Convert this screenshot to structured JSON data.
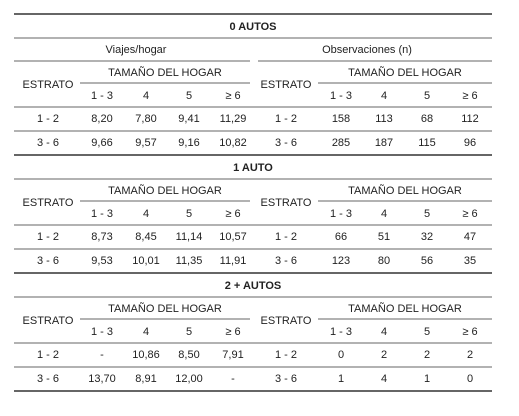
{
  "sections": [
    {
      "title": "0 AUTOS",
      "subheaders": [
        "Viajes/hogar",
        "Observaciones (n)"
      ],
      "halves": [
        {
          "stub_header": "ESTRATO",
          "group_header": "TAMAÑO DEL HOGAR",
          "columns": [
            "1 - 3",
            "4",
            "5",
            "≥ 6"
          ],
          "rows": [
            [
              "1 - 2",
              "8,20",
              "7,80",
              "9,41",
              "11,29"
            ],
            [
              "3 - 6",
              "9,66",
              "9,57",
              "9,16",
              "10,82"
            ]
          ]
        },
        {
          "stub_header": "ESTRATO",
          "group_header": "TAMAÑO DEL HOGAR",
          "columns": [
            "1 - 3",
            "4",
            "5",
            "≥ 6"
          ],
          "rows": [
            [
              "1 - 2",
              "158",
              "113",
              "68",
              "112"
            ],
            [
              "3 - 6",
              "285",
              "187",
              "115",
              "96"
            ]
          ]
        }
      ]
    },
    {
      "title": "1 AUTO",
      "halves": [
        {
          "stub_header": "ESTRATO",
          "group_header": "TAMAÑO DEL HOGAR",
          "columns": [
            "1 - 3",
            "4",
            "5",
            "≥ 6"
          ],
          "rows": [
            [
              "1 - 2",
              "8,73",
              "8,45",
              "11,14",
              "10,57"
            ],
            [
              "3 - 6",
              "9,53",
              "10,01",
              "11,35",
              "11,91"
            ]
          ]
        },
        {
          "stub_header": "ESTRATO",
          "group_header": "TAMAÑO DEL HOGAR",
          "columns": [
            "1 - 3",
            "4",
            "5",
            "≥ 6"
          ],
          "rows": [
            [
              "1 - 2",
              "66",
              "51",
              "32",
              "47"
            ],
            [
              "3 - 6",
              "123",
              "80",
              "56",
              "35"
            ]
          ]
        }
      ]
    },
    {
      "title": "2 + AUTOS",
      "halves": [
        {
          "stub_header": "ESTRATO",
          "group_header": "TAMAÑO DEL HOGAR",
          "columns": [
            "1 - 3",
            "4",
            "5",
            "≥ 6"
          ],
          "rows": [
            [
              "1 - 2",
              "-",
              "10,86",
              "8,50",
              "7,91"
            ],
            [
              "3 - 6",
              "13,70",
              "8,91",
              "12,00",
              "-"
            ]
          ]
        },
        {
          "stub_header": "ESTRATO",
          "group_header": "TAMAÑO DEL HOGAR",
          "columns": [
            "1 - 3",
            "4",
            "5",
            "≥ 6"
          ],
          "rows": [
            [
              "1 - 2",
              "0",
              "2",
              "2",
              "2"
            ],
            [
              "3 - 6",
              "1",
              "4",
              "1",
              "0"
            ]
          ]
        }
      ]
    }
  ]
}
